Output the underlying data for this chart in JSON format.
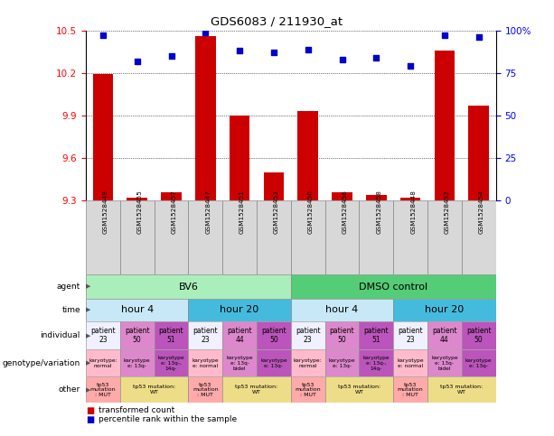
{
  "title": "GDS6083 / 211930_at",
  "samples": [
    "GSM1528449",
    "GSM1528455",
    "GSM1528457",
    "GSM1528447",
    "GSM1528451",
    "GSM1528453",
    "GSM1528450",
    "GSM1528456",
    "GSM1528458",
    "GSM1528448",
    "GSM1528452",
    "GSM1528454"
  ],
  "bar_values": [
    10.19,
    9.32,
    9.36,
    10.46,
    9.9,
    9.5,
    9.93,
    9.36,
    9.34,
    9.32,
    10.36,
    9.97
  ],
  "dot_values": [
    97,
    82,
    85,
    99,
    88,
    87,
    89,
    83,
    84,
    79,
    97,
    96
  ],
  "ylim_left": [
    9.3,
    10.5
  ],
  "ylim_right": [
    0,
    100
  ],
  "yticks_left": [
    9.3,
    9.6,
    9.9,
    10.2,
    10.5
  ],
  "yticks_right": [
    0,
    25,
    50,
    75,
    100
  ],
  "ytick_labels_right": [
    "0",
    "25",
    "50",
    "75",
    "100%"
  ],
  "bar_color": "#cc0000",
  "dot_color": "#0000cc",
  "agent_row": {
    "groups": [
      {
        "label": "BV6",
        "start": 0,
        "end": 6,
        "color": "#aaeebb"
      },
      {
        "label": "DMSO control",
        "start": 6,
        "end": 12,
        "color": "#55cc77"
      }
    ]
  },
  "time_row": {
    "groups": [
      {
        "label": "hour 4",
        "start": 0,
        "end": 3,
        "color": "#c8e8f8"
      },
      {
        "label": "hour 20",
        "start": 3,
        "end": 6,
        "color": "#44bbdd"
      },
      {
        "label": "hour 4",
        "start": 6,
        "end": 9,
        "color": "#c8e8f8"
      },
      {
        "label": "hour 20",
        "start": 9,
        "end": 12,
        "color": "#44bbdd"
      }
    ]
  },
  "individual_row": {
    "values": [
      "patient\n23",
      "patient\n50",
      "patient\n51",
      "patient\n23",
      "patient\n44",
      "patient\n50",
      "patient\n23",
      "patient\n50",
      "patient\n51",
      "patient\n23",
      "patient\n44",
      "patient\n50"
    ],
    "colors": [
      "#f0f0ff",
      "#dd88cc",
      "#bb55bb",
      "#f0f0ff",
      "#dd88cc",
      "#bb55bb",
      "#f0f0ff",
      "#dd88cc",
      "#bb55bb",
      "#f0f0ff",
      "#dd88cc",
      "#bb55bb"
    ]
  },
  "genotype_row": {
    "values": [
      "karyotype:\nnormal",
      "karyotype\ne: 13q-",
      "karyotype\ne: 13q-,\n14q-",
      "karyotype\ne: normal",
      "karyotype\ne: 13q-\nbidel",
      "karyotype\ne: 13q-",
      "karyotype:\nnormal",
      "karyotype\ne: 13q-",
      "karyotype\ne: 13q-,\n14q-",
      "karyotype\ne: normal",
      "karyotype\ne: 13q-\nbidel",
      "karyotype\ne: 13q-"
    ],
    "colors": [
      "#ffbbcc",
      "#dd88cc",
      "#bb55bb",
      "#ffbbcc",
      "#dd88cc",
      "#bb55bb",
      "#ffbbcc",
      "#dd88cc",
      "#bb55bb",
      "#ffbbcc",
      "#dd88cc",
      "#bb55bb"
    ]
  },
  "other_row": {
    "values": [
      "tp53\nmutation\n: MUT",
      "tp53 mutation:\nWT",
      "tp53\nmutation\n: MUT",
      "tp53 mutation:\nWT",
      "tp53\nmutation\n: MUT",
      "tp53 mutation:\nWT",
      "tp53\nmutation\n: MUT",
      "tp53 mutation:\nWT"
    ],
    "spans": [
      1,
      2,
      1,
      2,
      1,
      2,
      1,
      2
    ],
    "colors": [
      "#ffaaaa",
      "#eedd88",
      "#ffaaaa",
      "#eedd88",
      "#ffaaaa",
      "#eedd88",
      "#ffaaaa",
      "#eedd88"
    ]
  },
  "row_labels": [
    "agent",
    "time",
    "individual",
    "genotype/variation",
    "other"
  ],
  "legend_items": [
    {
      "label": "transformed count",
      "color": "#cc0000"
    },
    {
      "label": "percentile rank within the sample",
      "color": "#0000cc"
    }
  ],
  "bg_color": "#ffffff",
  "n_samples": 12
}
